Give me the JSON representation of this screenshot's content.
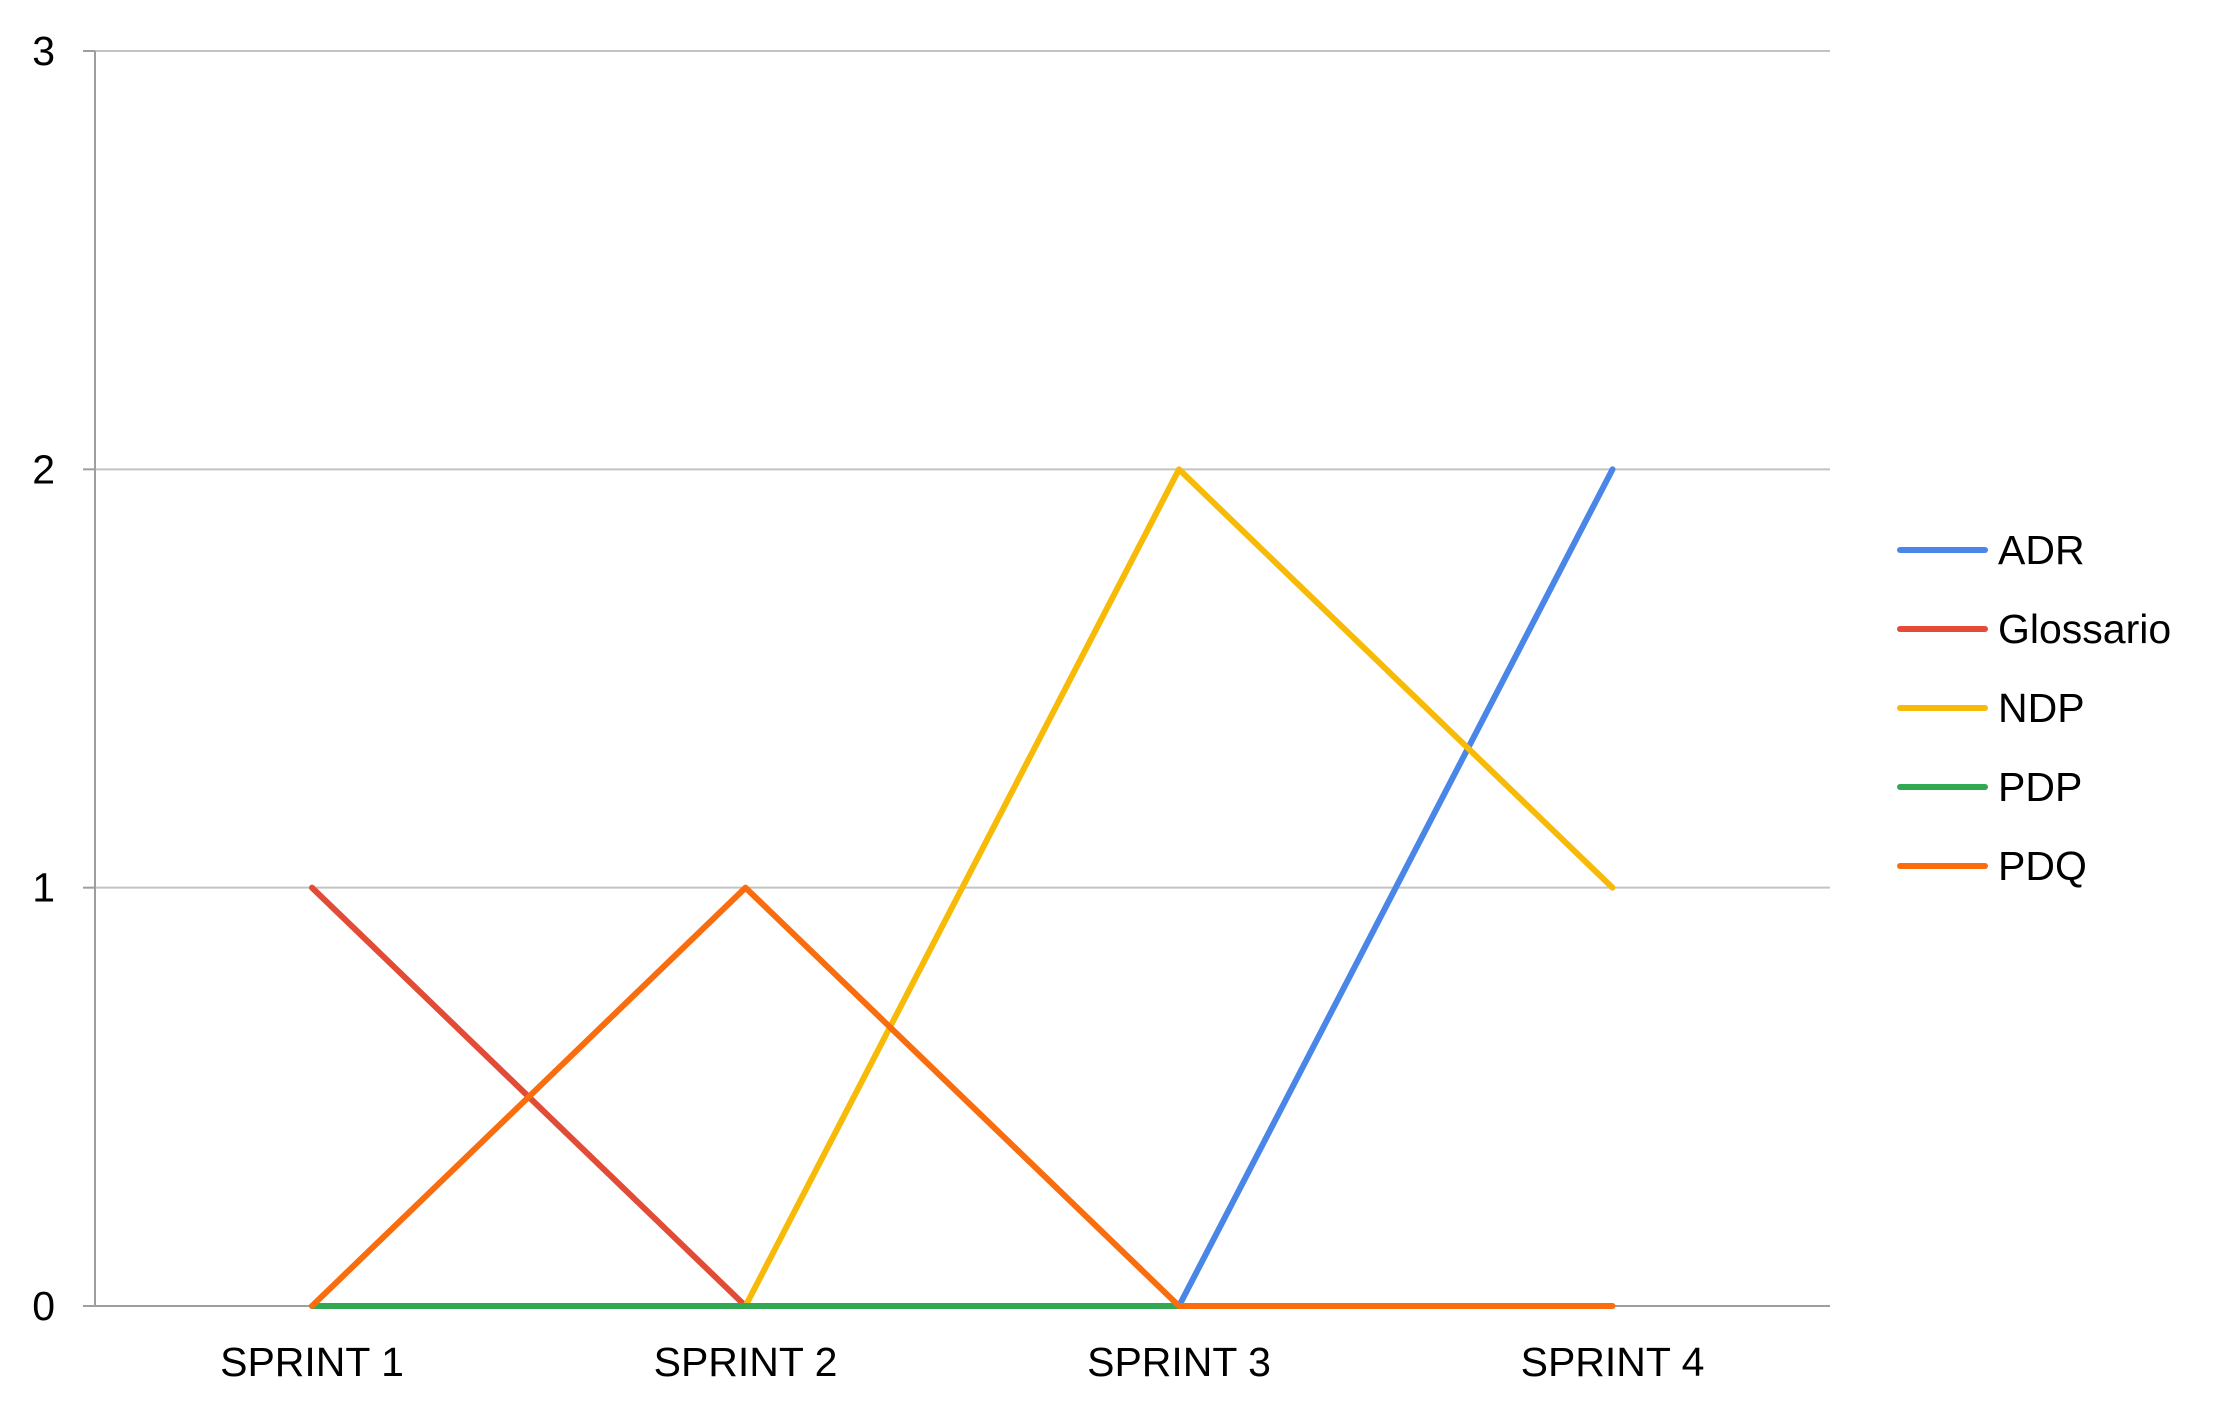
{
  "chart_data": {
    "type": "line",
    "title": "",
    "xlabel": "",
    "ylabel": "",
    "categories": [
      "SPRINT 1",
      "SPRINT 2",
      "SPRINT 3",
      "SPRINT 4"
    ],
    "ylim": [
      0,
      3
    ],
    "yticks": [
      0,
      1,
      2,
      3
    ],
    "grid": true,
    "legend_position": "right",
    "series": [
      {
        "name": "ADR",
        "color": "#4a86e8",
        "values": [
          null,
          null,
          0,
          2
        ]
      },
      {
        "name": "Glossario",
        "color": "#e24c37",
        "values": [
          1,
          0,
          null,
          null
        ]
      },
      {
        "name": "NDP",
        "color": "#f7bb07",
        "values": [
          null,
          0,
          2,
          1
        ]
      },
      {
        "name": "PDP",
        "color": "#33a853",
        "values": [
          0,
          0,
          0,
          null
        ]
      },
      {
        "name": "PDQ",
        "color": "#fa6d0f",
        "values": [
          0,
          1,
          0,
          0
        ]
      }
    ]
  }
}
